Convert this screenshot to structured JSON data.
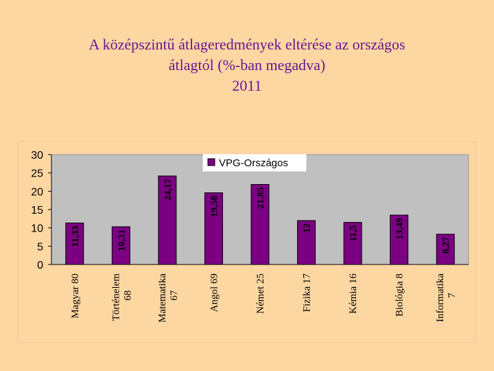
{
  "slide": {
    "title_line1": "A középszintű átlageredmények eltérése az országos",
    "title_line2": "átlagtól (%-ban megadva)",
    "title_line3": "2011"
  },
  "chart_data": {
    "type": "bar",
    "categories": [
      [
        "Magyar 80"
      ],
      [
        "Történelem",
        "68"
      ],
      [
        "Matematika",
        "67"
      ],
      [
        "Angol 69"
      ],
      [
        "Német 25"
      ],
      [
        "Fizika 17"
      ],
      [
        "Kémia 16"
      ],
      [
        "Biológia 8"
      ],
      [
        "Informatika",
        "7"
      ]
    ],
    "series": [
      {
        "name": "VPG-Országos",
        "values": [
          11.33,
          10.31,
          24.17,
          19.58,
          21.85,
          12,
          11.5,
          13.49,
          8.27
        ],
        "labels": [
          "11,33",
          "10,31",
          "24,17",
          "19,58",
          "21,85",
          "12",
          "11,5",
          "13,49",
          "8,27"
        ],
        "color": "#7b0082"
      }
    ],
    "ylim": [
      0,
      30
    ],
    "yticks": [
      0,
      5,
      10,
      15,
      20,
      25,
      30
    ],
    "grid": false,
    "legend": "top-center",
    "colors": {
      "background": "#fdd7a2",
      "plot_area": "#c0c0c0",
      "title": "#6a1390",
      "bar": "#7b0082"
    }
  }
}
